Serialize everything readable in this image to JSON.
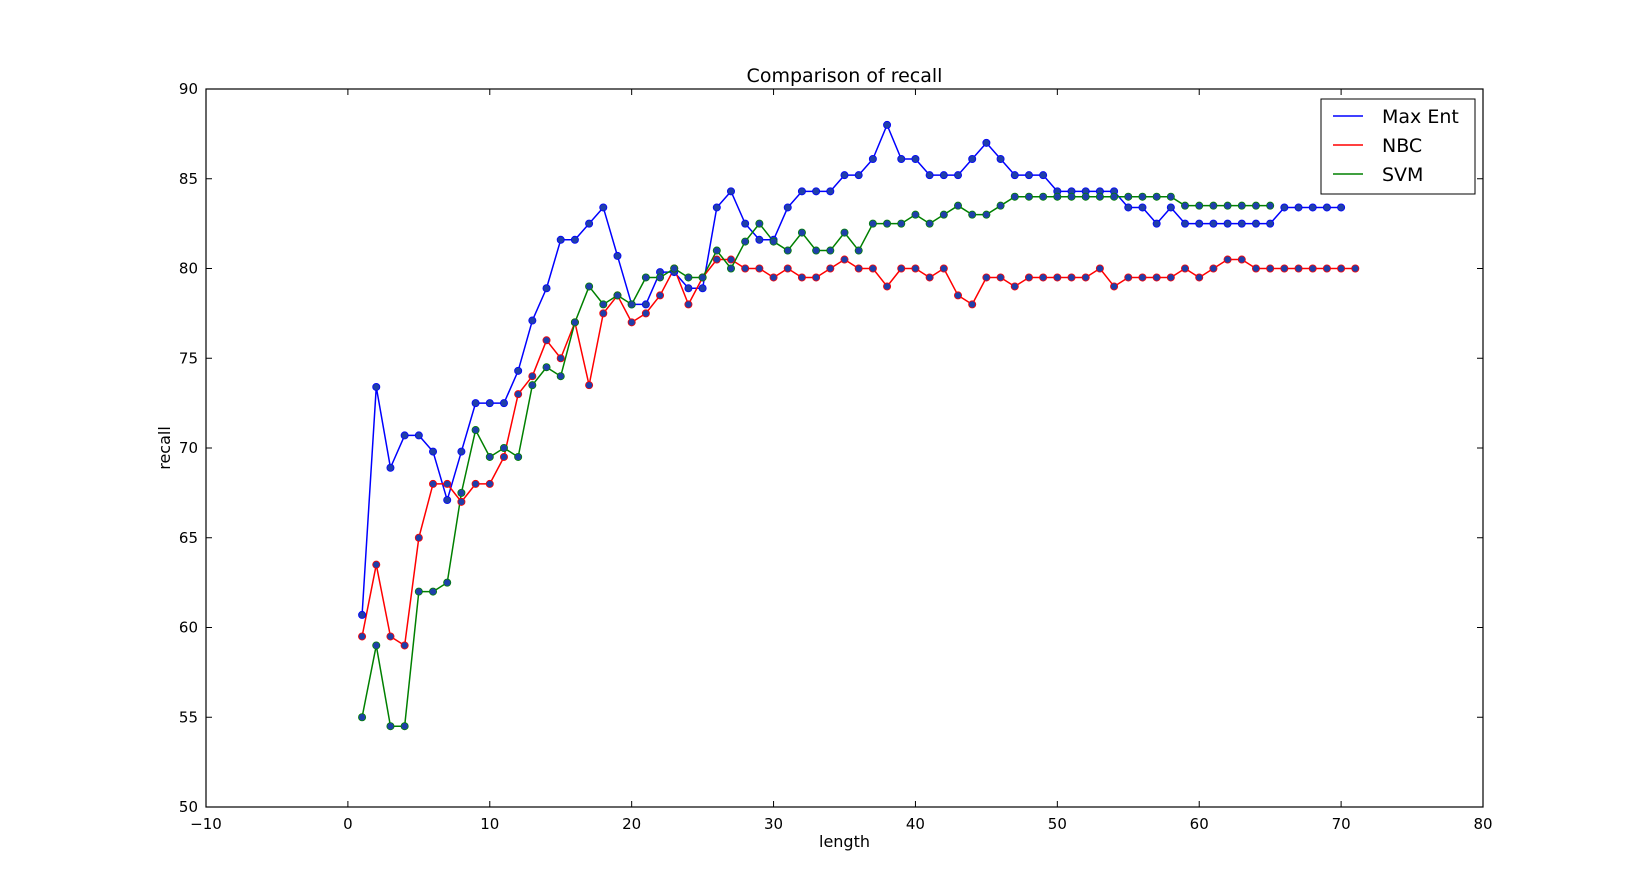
{
  "chart_data": {
    "type": "line",
    "title": "Comparison of recall",
    "xlabel": "length",
    "ylabel": "recall",
    "xlim": [
      -10,
      80
    ],
    "ylim": [
      50,
      90
    ],
    "xticks": [
      -10,
      0,
      10,
      20,
      30,
      40,
      50,
      60,
      70,
      80
    ],
    "xtick_labels": [
      "−10",
      "0",
      "10",
      "20",
      "30",
      "40",
      "50",
      "60",
      "70",
      "80"
    ],
    "yticks": [
      50,
      55,
      60,
      65,
      70,
      75,
      80,
      85,
      90
    ],
    "ytick_labels": [
      "50",
      "55",
      "60",
      "65",
      "70",
      "75",
      "80",
      "85",
      "90"
    ],
    "grid": false,
    "legend_position": "top-right",
    "marker_color": "#1f3faa",
    "series": [
      {
        "name": "Max Ent",
        "color": "#0000ff",
        "x": [
          1,
          2,
          3,
          4,
          5,
          6,
          7,
          8,
          9,
          10,
          11,
          12,
          13,
          14,
          15,
          16,
          17,
          18,
          19,
          20,
          21,
          22,
          23,
          24,
          25,
          26,
          27,
          28,
          29,
          30,
          31,
          32,
          33,
          34,
          35,
          36,
          37,
          38,
          39,
          40,
          41,
          42,
          43,
          44,
          45,
          46,
          47,
          48,
          49,
          50,
          51,
          52,
          53,
          54,
          55,
          56,
          57,
          58,
          59,
          60,
          61,
          62,
          63,
          64,
          65,
          66,
          67,
          68,
          69,
          70
        ],
        "y": [
          60.7,
          73.4,
          68.9,
          70.7,
          70.7,
          69.8,
          67.1,
          69.8,
          72.5,
          72.5,
          72.5,
          74.3,
          77.1,
          78.9,
          81.6,
          81.6,
          82.5,
          83.4,
          80.7,
          78.0,
          78.0,
          79.8,
          79.8,
          78.9,
          78.9,
          83.4,
          84.3,
          82.5,
          81.6,
          81.6,
          83.4,
          84.3,
          84.3,
          84.3,
          85.2,
          85.2,
          86.1,
          88.0,
          86.1,
          86.1,
          85.2,
          85.2,
          85.2,
          86.1,
          87.0,
          86.1,
          85.2,
          85.2,
          85.2,
          84.3,
          84.3,
          84.3,
          84.3,
          84.3,
          83.4,
          83.4,
          82.5,
          83.4,
          82.5,
          82.5,
          82.5,
          82.5,
          82.5,
          82.5,
          82.5,
          83.4,
          83.4,
          83.4,
          83.4,
          83.4
        ]
      },
      {
        "name": "NBC",
        "color": "#ff0000",
        "x": [
          1,
          2,
          3,
          4,
          5,
          6,
          7,
          8,
          9,
          10,
          11,
          12,
          13,
          14,
          15,
          16,
          17,
          18,
          19,
          20,
          21,
          22,
          23,
          24,
          25,
          26,
          27,
          28,
          29,
          30,
          31,
          32,
          33,
          34,
          35,
          36,
          37,
          38,
          39,
          40,
          41,
          42,
          43,
          44,
          45,
          46,
          47,
          48,
          49,
          50,
          51,
          52,
          53,
          54,
          55,
          56,
          57,
          58,
          59,
          60,
          61,
          62,
          63,
          64,
          65,
          66,
          67,
          68,
          69,
          70,
          71
        ],
        "y": [
          59.5,
          63.5,
          59.5,
          59.0,
          65.0,
          68.0,
          68.0,
          67.0,
          68.0,
          68.0,
          69.5,
          73.0,
          74.0,
          76.0,
          75.0,
          77.0,
          73.5,
          77.5,
          78.5,
          77.0,
          77.5,
          78.5,
          80.0,
          78.0,
          79.5,
          80.5,
          80.5,
          80.0,
          80.0,
          79.5,
          80.0,
          79.5,
          79.5,
          80.0,
          80.5,
          80.0,
          80.0,
          79.0,
          80.0,
          80.0,
          79.5,
          80.0,
          78.5,
          78.0,
          79.5,
          79.5,
          79.0,
          79.5,
          79.5,
          79.5,
          79.5,
          79.5,
          80.0,
          79.0,
          79.5,
          79.5,
          79.5,
          79.5,
          80.0,
          79.5,
          80.0,
          80.5,
          80.5,
          80.0,
          80.0,
          80.0,
          80.0,
          80.0,
          80.0,
          80.0,
          80.0
        ]
      },
      {
        "name": "SVM",
        "color": "#008000",
        "x": [
          1,
          2,
          3,
          4,
          5,
          6,
          7,
          8,
          9,
          10,
          11,
          12,
          13,
          14,
          15,
          16,
          17,
          18,
          19,
          20,
          21,
          22,
          23,
          24,
          25,
          26,
          27,
          28,
          29,
          30,
          31,
          32,
          33,
          34,
          35,
          36,
          37,
          38,
          39,
          40,
          41,
          42,
          43,
          44,
          45,
          46,
          47,
          48,
          49,
          50,
          51,
          52,
          53,
          54,
          55,
          56,
          57,
          58,
          59,
          60,
          61,
          62,
          63,
          64,
          65
        ],
        "y": [
          55.0,
          59.0,
          54.5,
          54.5,
          62.0,
          62.0,
          62.5,
          67.5,
          71.0,
          69.5,
          70.0,
          69.5,
          73.5,
          74.5,
          74.0,
          77.0,
          79.0,
          78.0,
          78.5,
          78.0,
          79.5,
          79.5,
          80.0,
          79.5,
          79.5,
          81.0,
          80.0,
          81.5,
          82.5,
          81.5,
          81.0,
          82.0,
          81.0,
          81.0,
          82.0,
          81.0,
          82.5,
          82.5,
          82.5,
          83.0,
          82.5,
          83.0,
          83.5,
          83.0,
          83.0,
          83.5,
          84.0,
          84.0,
          84.0,
          84.0,
          84.0,
          84.0,
          84.0,
          84.0,
          84.0,
          84.0,
          84.0,
          84.0,
          83.5,
          83.5,
          83.5,
          83.5,
          83.5,
          83.5,
          83.5
        ]
      }
    ]
  }
}
